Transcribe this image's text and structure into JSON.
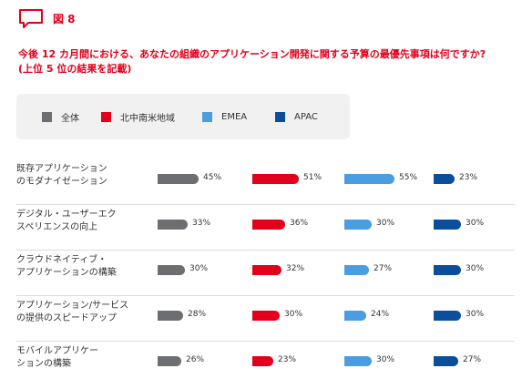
{
  "figure_label": "図 8",
  "title_line1": "今後 12 カ月間における、あなたの組織のアプリケーション開発に関する予算の最優先事項は何ですか?",
  "title_line2": "(上位 5 位の結果を記載)",
  "colors": {
    "accent": "#e3001b",
    "series": [
      "#6d6e71",
      "#e3001b",
      "#4a9de0",
      "#0b4e9b"
    ]
  },
  "chart_data": {
    "type": "bar",
    "legend_position": "top",
    "categories": [
      [
        "既存アプリケーション",
        "のモダナイゼーション"
      ],
      [
        "デジタル・ユーザーエク",
        "スペリエンスの向上"
      ],
      [
        "クラウドネイティブ・",
        "アプリケーションの構築"
      ],
      [
        "アプリケーション/サービス",
        "の提供のスピードアップ"
      ],
      [
        "モバイルアプリケー",
        "ションの構築"
      ]
    ],
    "series": [
      {
        "name": "全体",
        "color": "#6d6e71",
        "values": [
          45,
          33,
          30,
          28,
          26
        ],
        "labels": [
          "45%",
          "33%",
          "30%",
          "28%",
          "26%"
        ]
      },
      {
        "name": "北中南米地域",
        "color": "#e3001b",
        "values": [
          51,
          36,
          32,
          30,
          23
        ],
        "labels": [
          "51%",
          "36%",
          "32%",
          "30%",
          "23%"
        ]
      },
      {
        "name": "EMEA",
        "color": "#4a9de0",
        "values": [
          55,
          30,
          27,
          24,
          30
        ],
        "labels": [
          "55%",
          "30%",
          "27%",
          "24%",
          "30%"
        ]
      },
      {
        "name": "APAC",
        "color": "#0b4e9b",
        "values": [
          23,
          30,
          30,
          30,
          27
        ],
        "labels": [
          "23%",
          "30%",
          "30%",
          "30%",
          "27%"
        ]
      }
    ]
  }
}
